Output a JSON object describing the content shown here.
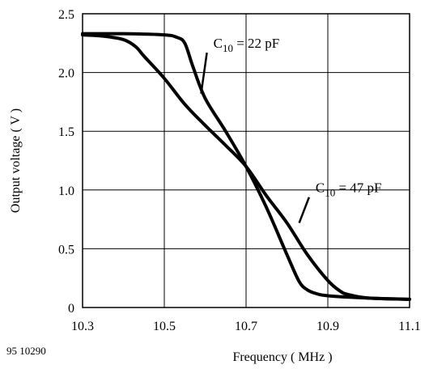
{
  "figure_id": "95 10290",
  "chart_data": {
    "type": "line",
    "title": "",
    "xlabel": "Frequency ( MHz )",
    "ylabel": "Output voltage ( V )",
    "xlim": [
      10.3,
      11.1
    ],
    "ylim": [
      0,
      2.5
    ],
    "x_ticks": [
      "10.3",
      "10.5",
      "10.7",
      "10.9",
      "11.1"
    ],
    "y_ticks": [
      "0",
      "0.5",
      "1.0",
      "1.5",
      "2.0",
      "2.5"
    ],
    "grid": true,
    "series": [
      {
        "name": "C10 = 22 pF",
        "label_main": "C",
        "label_sub": "10",
        "label_rest": " = 22 pF",
        "x": [
          10.3,
          10.4,
          10.5,
          10.53,
          10.55,
          10.57,
          10.6,
          10.65,
          10.7,
          10.75,
          10.8,
          10.83,
          10.85,
          10.87,
          10.9,
          11.0,
          11.1
        ],
        "y": [
          2.33,
          2.33,
          2.32,
          2.3,
          2.25,
          2.05,
          1.78,
          1.5,
          1.2,
          0.85,
          0.45,
          0.22,
          0.15,
          0.12,
          0.1,
          0.08,
          0.07
        ]
      },
      {
        "name": "C10 = 47 pF",
        "label_main": "C",
        "label_sub": "10",
        "label_rest": " = 47 pF",
        "x": [
          10.3,
          10.35,
          10.4,
          10.43,
          10.45,
          10.5,
          10.55,
          10.6,
          10.65,
          10.7,
          10.75,
          10.8,
          10.85,
          10.9,
          10.93,
          10.95,
          11.0,
          11.1
        ],
        "y": [
          2.32,
          2.31,
          2.28,
          2.22,
          2.14,
          1.95,
          1.73,
          1.55,
          1.38,
          1.2,
          0.95,
          0.72,
          0.45,
          0.23,
          0.14,
          0.11,
          0.08,
          0.07
        ]
      }
    ],
    "annotations": [
      {
        "series": 0,
        "point_x": 10.59,
        "point_y": 1.82,
        "text_x": 10.62,
        "text_y": 2.21
      },
      {
        "series": 1,
        "point_x": 10.83,
        "point_y": 0.72,
        "text_x": 10.87,
        "text_y": 0.98
      }
    ]
  }
}
